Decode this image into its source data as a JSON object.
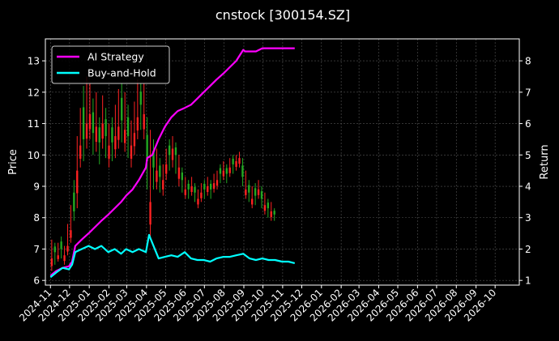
{
  "chart_data": {
    "type": "line",
    "title": "cnstock [300154.SZ]",
    "xlabel": "",
    "ylabel": "Price",
    "ylabel_right": "Return",
    "grid": true,
    "legend_placement": "top-left",
    "x_tick_labels": [
      "2024-11",
      "2024-12",
      "2025-01",
      "2025-02",
      "2025-03",
      "2025-04",
      "2025-05",
      "2025-06",
      "2025-07",
      "2025-08",
      "2025-09",
      "2025-10",
      "2025-11",
      "2025-12",
      "2026-01",
      "2026-02",
      "2026-03",
      "2026-04",
      "2026-05",
      "2026-06",
      "2026-07",
      "2026-08",
      "2026-09",
      "2026-10"
    ],
    "x_range": [
      "2024-11-01",
      "2026-10-31"
    ],
    "y_left": {
      "ticks": [
        6,
        7,
        8,
        9,
        10,
        11,
        12,
        13
      ],
      "ylim": [
        5.85,
        13.7
      ]
    },
    "y_right": {
      "ticks": [
        1,
        2,
        3,
        4,
        5,
        6,
        7,
        8
      ],
      "ylim": [
        0.85,
        8.7
      ]
    },
    "series": [
      {
        "name": "AI Strategy",
        "axis": "right",
        "color": "#ff00ff",
        "x": [
          "2024-11-01",
          "2024-11-10",
          "2024-11-20",
          "2024-11-30",
          "2024-12-05",
          "2024-12-10",
          "2024-12-20",
          "2024-12-31",
          "2025-01-10",
          "2025-01-20",
          "2025-01-31",
          "2025-02-10",
          "2025-02-20",
          "2025-02-28",
          "2025-03-10",
          "2025-03-20",
          "2025-03-31",
          "2025-04-02",
          "2025-04-10",
          "2025-04-20",
          "2025-04-30",
          "2025-05-10",
          "2025-05-20",
          "2025-05-31",
          "2025-06-10",
          "2025-06-20",
          "2025-06-30",
          "2025-07-10",
          "2025-07-20",
          "2025-07-31",
          "2025-08-10",
          "2025-08-20",
          "2025-08-31",
          "2025-09-03",
          "2025-09-10",
          "2025-09-20",
          "2025-09-30",
          "2025-10-10",
          "2025-10-20",
          "2025-10-31",
          "2025-11-10",
          "2025-11-20"
        ],
        "y": [
          1.15,
          1.3,
          1.4,
          1.45,
          1.6,
          2.1,
          2.3,
          2.5,
          2.7,
          2.9,
          3.1,
          3.3,
          3.5,
          3.7,
          3.9,
          4.2,
          4.6,
          4.9,
          5.0,
          5.5,
          5.9,
          6.2,
          6.4,
          6.5,
          6.6,
          6.8,
          7.0,
          7.2,
          7.4,
          7.6,
          7.8,
          8.0,
          8.35,
          8.3,
          8.3,
          8.3,
          8.4,
          8.4,
          8.4,
          8.4,
          8.4,
          8.4
        ]
      },
      {
        "name": "Buy-and-Hold",
        "axis": "right",
        "color": "#00ffff",
        "x": [
          "2024-11-01",
          "2024-11-10",
          "2024-11-20",
          "2024-11-30",
          "2024-12-05",
          "2024-12-10",
          "2024-12-20",
          "2024-12-31",
          "2025-01-10",
          "2025-01-20",
          "2025-01-31",
          "2025-02-10",
          "2025-02-20",
          "2025-02-28",
          "2025-03-10",
          "2025-03-20",
          "2025-03-31",
          "2025-04-05",
          "2025-04-10",
          "2025-04-20",
          "2025-04-30",
          "2025-05-10",
          "2025-05-20",
          "2025-05-31",
          "2025-06-10",
          "2025-06-20",
          "2025-06-30",
          "2025-07-10",
          "2025-07-20",
          "2025-07-31",
          "2025-08-10",
          "2025-08-20",
          "2025-08-31",
          "2025-09-10",
          "2025-09-20",
          "2025-09-30",
          "2025-10-10",
          "2025-10-20",
          "2025-10-31",
          "2025-11-10",
          "2025-11-20"
        ],
        "y": [
          1.1,
          1.25,
          1.4,
          1.35,
          1.5,
          1.9,
          2.0,
          2.1,
          2.0,
          2.1,
          1.9,
          2.0,
          1.85,
          2.0,
          1.9,
          2.0,
          1.9,
          2.45,
          2.2,
          1.7,
          1.75,
          1.8,
          1.75,
          1.9,
          1.7,
          1.65,
          1.65,
          1.6,
          1.7,
          1.75,
          1.75,
          1.8,
          1.85,
          1.7,
          1.65,
          1.7,
          1.65,
          1.65,
          1.6,
          1.6,
          1.55
        ]
      },
      {
        "name": "Price",
        "axis": "left",
        "type": "candlestick",
        "up_color": "#ff2222",
        "down_color": "#22aa22",
        "x": [
          "2024-11-03",
          "2024-11-08",
          "2024-11-13",
          "2024-11-18",
          "2024-11-23",
          "2024-11-28",
          "2024-12-03",
          "2024-12-08",
          "2024-12-13",
          "2024-12-18",
          "2024-12-23",
          "2024-12-28",
          "2025-01-02",
          "2025-01-07",
          "2025-01-12",
          "2025-01-17",
          "2025-01-22",
          "2025-01-27",
          "2025-02-01",
          "2025-02-06",
          "2025-02-11",
          "2025-02-16",
          "2025-02-21",
          "2025-02-26",
          "2025-03-03",
          "2025-03-08",
          "2025-03-13",
          "2025-03-18",
          "2025-03-23",
          "2025-03-28",
          "2025-04-02",
          "2025-04-07",
          "2025-04-12",
          "2025-04-17",
          "2025-04-22",
          "2025-04-27",
          "2025-05-02",
          "2025-05-07",
          "2025-05-12",
          "2025-05-17",
          "2025-05-22",
          "2025-05-27",
          "2025-06-01",
          "2025-06-06",
          "2025-06-11",
          "2025-06-16",
          "2025-06-21",
          "2025-06-26",
          "2025-07-01",
          "2025-07-06",
          "2025-07-11",
          "2025-07-16",
          "2025-07-21",
          "2025-07-26",
          "2025-07-31",
          "2025-08-05",
          "2025-08-10",
          "2025-08-15",
          "2025-08-20",
          "2025-08-25",
          "2025-08-30",
          "2025-09-04",
          "2025-09-09",
          "2025-09-14",
          "2025-09-19",
          "2025-09-24",
          "2025-09-29",
          "2025-10-04",
          "2025-10-09",
          "2025-10-14",
          "2025-10-19"
        ],
        "close": [
          6.7,
          6.9,
          6.8,
          7.0,
          6.8,
          7.1,
          7.6,
          8.2,
          9.5,
          10.3,
          10.5,
          11.0,
          11.3,
          10.7,
          10.9,
          10.4,
          11.0,
          10.6,
          10.3,
          10.4,
          10.6,
          10.9,
          11.1,
          10.8,
          10.6,
          10.3,
          10.7,
          11.2,
          11.6,
          11.3,
          9.8,
          8.5,
          9.6,
          9.5,
          9.3,
          9.2,
          9.7,
          10.0,
          10.2,
          10.0,
          9.6,
          9.2,
          8.9,
          8.9,
          9.0,
          8.8,
          8.6,
          8.8,
          8.9,
          9.0,
          8.9,
          9.1,
          9.2,
          9.4,
          9.5,
          9.4,
          9.6,
          9.7,
          9.8,
          9.9,
          9.3,
          8.9,
          8.8,
          8.6,
          8.7,
          8.9,
          8.6,
          8.4,
          8.3,
          8.2,
          8.1
        ],
        "high": [
          7.3,
          7.2,
          7.2,
          7.4,
          7.1,
          7.8,
          8.4,
          9.2,
          10.6,
          11.5,
          12.2,
          12.5,
          12.3,
          11.8,
          12.0,
          11.2,
          11.9,
          11.5,
          11.0,
          11.2,
          11.6,
          12.1,
          12.3,
          12.0,
          11.6,
          11.1,
          11.7,
          12.4,
          12.3,
          12.3,
          11.2,
          10.8,
          10.5,
          10.2,
          9.9,
          9.7,
          10.2,
          10.5,
          10.6,
          10.4,
          10.0,
          9.6,
          9.3,
          9.2,
          9.3,
          9.1,
          8.9,
          9.1,
          9.2,
          9.3,
          9.2,
          9.4,
          9.5,
          9.7,
          9.8,
          9.7,
          9.9,
          10.0,
          10.0,
          10.1,
          9.9,
          9.5,
          9.2,
          9.0,
          9.1,
          9.2,
          9.0,
          8.8,
          8.6,
          8.5,
          8.3
        ],
        "low": [
          6.3,
          6.5,
          6.6,
          6.7,
          6.5,
          6.8,
          7.2,
          7.9,
          8.3,
          9.6,
          9.8,
          10.2,
          10.5,
          10.0,
          10.1,
          9.7,
          10.2,
          9.9,
          9.6,
          9.8,
          9.9,
          10.2,
          10.4,
          10.1,
          9.9,
          9.6,
          10.0,
          10.5,
          10.8,
          10.5,
          8.9,
          7.3,
          8.9,
          8.9,
          8.8,
          8.7,
          9.2,
          9.5,
          9.6,
          9.4,
          9.0,
          8.8,
          8.6,
          8.6,
          8.7,
          8.5,
          8.3,
          8.5,
          8.6,
          8.7,
          8.6,
          8.8,
          8.9,
          9.1,
          9.2,
          9.1,
          9.3,
          9.4,
          9.5,
          9.6,
          9.0,
          8.6,
          8.5,
          8.3,
          8.4,
          8.6,
          8.3,
          8.1,
          8.0,
          7.9,
          7.9
        ],
        "up": [
          true,
          false,
          true,
          false,
          true,
          true,
          true,
          false,
          true,
          true,
          false,
          true,
          true,
          false,
          true,
          false,
          true,
          false,
          true,
          false,
          true,
          true,
          false,
          true,
          false,
          true,
          true,
          true,
          false,
          true,
          false,
          true,
          false,
          true,
          false,
          true,
          true,
          false,
          true,
          false,
          true,
          false,
          true,
          false,
          true,
          false,
          true,
          true,
          false,
          true,
          false,
          true,
          true,
          false,
          true,
          false,
          true,
          false,
          true,
          true,
          false,
          true,
          false,
          true,
          false,
          true,
          false,
          true,
          false,
          true,
          false
        ]
      }
    ]
  }
}
